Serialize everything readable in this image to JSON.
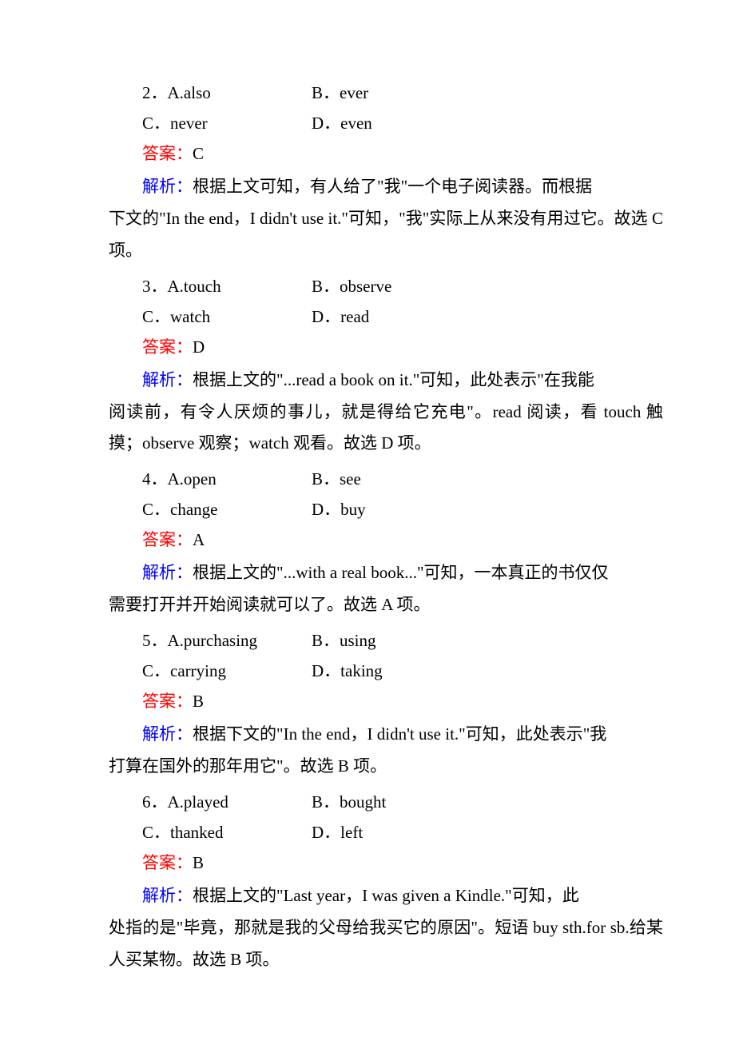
{
  "questions": [
    {
      "number": "2",
      "options": {
        "a": "A.also",
        "b": "B．ever",
        "c": "C．never",
        "d": "D．even"
      },
      "answer_label": "答案：",
      "answer_value": "C",
      "explanation_label": "解析：",
      "explanation_first": "根据上文可知，有人给了\"我\"一个电子阅读器。而根据",
      "explanation_cont": "下文的\"In the end，I didn't use it.\"可知，\"我\"实际上从来没有用过它。故选 C 项。"
    },
    {
      "number": "3",
      "options": {
        "a": "A.touch",
        "b": "B．observe",
        "c": "C．watch",
        "d": "D．read"
      },
      "answer_label": "答案：",
      "answer_value": "D",
      "explanation_label": "解析：",
      "explanation_first": "根据上文的\"...read a book on it.\"可知，此处表示\"在我能",
      "explanation_cont": "阅读前，有令人厌烦的事儿，就是得给它充电\"。read 阅读，看 touch 触摸；observe 观察；watch 观看。故选 D 项。"
    },
    {
      "number": "4",
      "options": {
        "a": "A.open",
        "b": "B．see",
        "c": "C．change",
        "d": "D．buy"
      },
      "answer_label": "答案：",
      "answer_value": "A",
      "explanation_label": "解析：",
      "explanation_first": "根据上文的\"...with a real book...\"可知，一本真正的书仅仅",
      "explanation_cont": "需要打开并开始阅读就可以了。故选 A 项。"
    },
    {
      "number": "5",
      "options": {
        "a": "A.purchasing",
        "b": "B．using",
        "c": "C．carrying",
        "d": "D．taking"
      },
      "answer_label": "答案：",
      "answer_value": "B",
      "explanation_label": "解析：",
      "explanation_first": "根据下文的\"In the end，I didn't use it.\"可知，此处表示\"我",
      "explanation_cont": "打算在国外的那年用它\"。故选 B 项。"
    },
    {
      "number": "6",
      "options": {
        "a": "A.played",
        "b": "B．bought",
        "c": "C．thanked",
        "d": "D．left"
      },
      "answer_label": "答案：",
      "answer_value": "B",
      "explanation_label": "解析：",
      "explanation_first": "根据上文的\"Last year，I was given a Kindle.\"可知，此",
      "explanation_cont": "处指的是\"毕竟，那就是我的父母给我买它的原因\"。短语 buy sth.for sb.给某人买某物。故选 B 项。"
    }
  ]
}
